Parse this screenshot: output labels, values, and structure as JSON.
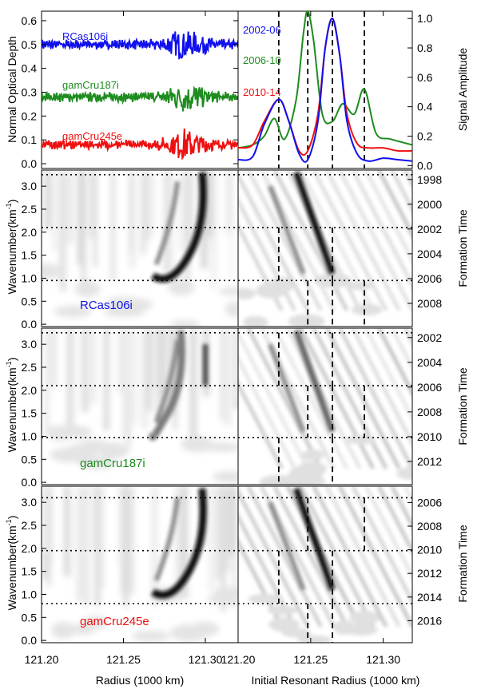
{
  "labels": {
    "y_top_left": "Normal Optical Depth",
    "y_top_right": "Signal Amplitude",
    "y_wave": "Wavenumber(km",
    "y_wave_sup": "-1",
    "y_wave_close": ")",
    "y_formation": "Formation Time",
    "x_left": "Radius (1000 km)",
    "x_right": "Initial Resonant Radius (1000 km)"
  },
  "colors": {
    "blue": "#1010ee",
    "green": "#1e8c1e",
    "red": "#ee1010"
  },
  "chart_data": [
    {
      "type": "line",
      "panel": "optical-depth-profiles",
      "ylabel": "Normal Optical Depth",
      "xlim": [
        121.2,
        121.32
      ],
      "ylim": [
        -0.02,
        0.64
      ],
      "yticks": [
        "0.0",
        "0.1",
        "0.2",
        "0.3",
        "0.4",
        "0.5",
        "0.6"
      ],
      "series": [
        {
          "name": "RCas106i",
          "color": "#1010ee",
          "baseline": 0.5
        },
        {
          "name": "gamCru187i",
          "color": "#1e8c1e",
          "baseline": 0.28
        },
        {
          "name": "gamCru245e",
          "color": "#ee1010",
          "baseline": 0.08
        }
      ]
    },
    {
      "type": "line",
      "panel": "signal-amplitude",
      "ylabel": "Signal Amplitude",
      "xlabel": "Initial Resonant Radius (1000 km)",
      "xlim": [
        121.2,
        121.32
      ],
      "ylim": [
        -0.02,
        1.05
      ],
      "yticks": [
        "0.0",
        "0.2",
        "0.4",
        "0.6",
        "0.8",
        "1.0"
      ],
      "dashed_x": [
        121.228,
        121.248,
        121.265,
        121.287
      ],
      "series": [
        {
          "name": "2002-06",
          "color": "#1010ee",
          "x": [
            121.2,
            121.21,
            121.218,
            121.228,
            121.235,
            121.242,
            121.248,
            121.255,
            121.26,
            121.265,
            121.27,
            121.275,
            121.282,
            121.29,
            121.3,
            121.31,
            121.32
          ],
          "y": [
            0.04,
            0.06,
            0.28,
            0.45,
            0.3,
            0.08,
            0.04,
            0.3,
            0.8,
            1.0,
            0.75,
            0.3,
            0.08,
            0.03,
            0.05,
            0.04,
            0.03
          ]
        },
        {
          "name": "2006-10",
          "color": "#1e8c1e",
          "x": [
            121.2,
            121.21,
            121.218,
            121.225,
            121.232,
            121.24,
            121.245,
            121.248,
            121.252,
            121.258,
            121.265,
            121.272,
            121.28,
            121.287,
            121.295,
            121.305,
            121.32
          ],
          "y": [
            0.12,
            0.14,
            0.2,
            0.32,
            0.18,
            0.45,
            0.9,
            1.05,
            0.85,
            0.35,
            0.3,
            0.42,
            0.35,
            0.52,
            0.22,
            0.18,
            0.14
          ]
        },
        {
          "name": "2010-14",
          "color": "#ee1010",
          "x": [
            121.2,
            121.21,
            121.218,
            121.228,
            121.235,
            121.242,
            121.248,
            121.255,
            121.26,
            121.265,
            121.27,
            121.275,
            121.282,
            121.29,
            121.3,
            121.31,
            121.32
          ],
          "y": [
            0.12,
            0.14,
            0.3,
            0.45,
            0.3,
            0.1,
            0.1,
            0.35,
            0.8,
            1.0,
            0.75,
            0.35,
            0.15,
            0.12,
            0.12,
            0.1,
            0.1
          ]
        }
      ]
    },
    {
      "type": "heatmap",
      "name": "RCas106i",
      "color": "#1010ee",
      "ylabel": "Wavenumber(km-1)",
      "y2label": "Formation Time",
      "xlim": [
        121.2,
        121.32
      ],
      "ylim": [
        -0.05,
        3.35
      ],
      "yticks": [
        "0.0",
        "0.5",
        "1.0",
        "1.5",
        "2.0",
        "2.5",
        "3.0"
      ],
      "year_ticks": [
        "1998",
        "2000",
        "2002",
        "2004",
        "2006",
        "2008"
      ],
      "dotted_y": [
        3.25,
        2.1,
        0.95
      ],
      "dashes": [
        {
          "x": 121.228,
          "band": "2.1-0.95"
        },
        {
          "x": 121.265,
          "band": "2.1-0.95"
        },
        {
          "x": 121.248,
          "band": "below-0.95"
        },
        {
          "x": 121.265,
          "band": "below-0.95"
        },
        {
          "x": 121.287,
          "band": "below-0.95"
        }
      ]
    },
    {
      "type": "heatmap",
      "name": "gamCru187i",
      "color": "#1e8c1e",
      "ylabel": "Wavenumber(km-1)",
      "y2label": "Formation Time",
      "xlim": [
        121.2,
        121.32
      ],
      "ylim": [
        -0.05,
        3.35
      ],
      "yticks": [
        "0.0",
        "0.5",
        "1.0",
        "1.5",
        "2.0",
        "2.5",
        "3.0"
      ],
      "year_ticks": [
        "2002",
        "2004",
        "2006",
        "2008",
        "2010",
        "2012"
      ],
      "dotted_y": [
        3.25,
        2.1,
        0.97
      ],
      "dashes": [
        {
          "x": 121.228,
          "band": "3.25-2.1"
        },
        {
          "x": 121.265,
          "band": "3.25-2.1"
        },
        {
          "x": 121.248,
          "band": "2.1-0.97"
        },
        {
          "x": 121.265,
          "band": "2.1-0.97"
        },
        {
          "x": 121.287,
          "band": "2.1-0.97"
        },
        {
          "x": 121.228,
          "band": "below-0.97"
        },
        {
          "x": 121.265,
          "band": "below-0.97"
        }
      ]
    },
    {
      "type": "heatmap",
      "name": "gamCru245e",
      "color": "#ee1010",
      "ylabel": "Wavenumber(km-1)",
      "y2label": "Formation Time",
      "xlabel": "Radius (1000 km)",
      "xlim": [
        121.2,
        121.32
      ],
      "ylim": [
        -0.05,
        3.35
      ],
      "yticks": [
        "0.0",
        "0.5",
        "1.0",
        "1.5",
        "2.0",
        "2.5",
        "3.0"
      ],
      "year_ticks": [
        "2006",
        "2008",
        "2010",
        "2012",
        "2014",
        "2016"
      ],
      "dotted_y": [
        3.1,
        1.95,
        0.8
      ],
      "dashes": [
        {
          "x": 121.248,
          "band": "3.1-1.95"
        },
        {
          "x": 121.287,
          "band": "3.1-1.95"
        },
        {
          "x": 121.228,
          "band": "1.95-0.8"
        },
        {
          "x": 121.265,
          "band": "1.95-0.8"
        },
        {
          "x": 121.248,
          "band": "below-0.8"
        },
        {
          "x": 121.265,
          "band": "below-0.8"
        }
      ]
    }
  ],
  "xticks": [
    "121.20",
    "121.25",
    "121.30"
  ]
}
